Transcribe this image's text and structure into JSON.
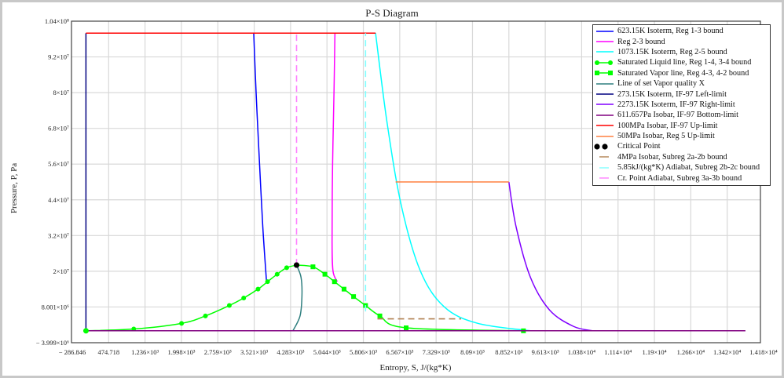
{
  "window": {
    "title": "P-S Diagram"
  },
  "chart_data": {
    "type": "line",
    "title": "P-S Diagram",
    "xlabel": "Entropy, S, J/(kg*K)",
    "ylabel": "Pressure, P, Pa",
    "xlim": [
      -286.846,
      14180
    ],
    "ylim": [
      -3999000,
      104000000
    ],
    "grid": true,
    "legend_position": "top-right",
    "x_ticks": [
      "− 286.846",
      "474.718",
      "1.236×10³",
      "1.998×10³",
      "2.759×10³",
      "3.521×10³",
      "4.283×10³",
      "5.044×10³",
      "5.806×10³",
      "6.567×10³",
      "7.329×10³",
      "8.09×10³",
      "8.852×10³",
      "9.613×10³",
      "1.038×10⁴",
      "1.114×10⁴",
      "1.19×10⁴",
      "1.266×10⁴",
      "1.342×10⁴",
      "1.418×10⁴"
    ],
    "y_ticks": [
      "1.04×10⁸",
      "9.2×10⁷",
      "8×10⁷",
      "6.8×10⁷",
      "5.6×10⁷",
      "4.4×10⁷",
      "3.2×10⁷",
      "2×10⁷",
      "8.001×10⁶",
      "− 3.999×10⁶"
    ],
    "series": [
      {
        "name": "623.15K Isoterm, Reg 1-3 bound",
        "color": "#0000ff",
        "style": "solid",
        "x": [
          3510,
          3560,
          3620,
          3700,
          3778
        ],
        "y": [
          100000000,
          80000000,
          60000000,
          35000000,
          16530000
        ]
      },
      {
        "name": "Reg 2-3 bound",
        "color": "#ff00ff",
        "style": "solid",
        "x": [
          5210,
          5190,
          5160,
          5150,
          5170,
          5260
        ],
        "y": [
          100000000,
          80000000,
          55000000,
          30000000,
          20000000,
          16530000
        ]
      },
      {
        "name": "1073.15K Isoterm, Reg 2-5 bound",
        "color": "#00ffff",
        "style": "solid",
        "x": [
          6060,
          6300,
          6600,
          7000,
          7500,
          8200,
          9300
        ],
        "y": [
          100000000,
          70000000,
          42000000,
          20000000,
          8000000,
          2500000,
          0
        ]
      },
      {
        "name": "Saturated Liquid line, Reg 1-4, 3-4 bound",
        "color": "#00ff00",
        "style": "solid-circle-markers",
        "x": [
          0,
          1000,
          2000,
          2500,
          3000,
          3300,
          3600,
          3800,
          4000,
          4200,
          4407
        ],
        "y": [
          611,
          600000,
          2500000,
          5000000,
          8500000,
          11000000,
          14000000,
          16500000,
          19000000,
          21200000,
          22064000
        ]
      },
      {
        "name": "Saturated Vapor line, Reg 4-3, 4-2 bound",
        "color": "#00ff00",
        "style": "solid-square-markers",
        "x": [
          4407,
          4750,
          5000,
          5200,
          5400,
          5600,
          5850,
          6150,
          6700,
          9155
        ],
        "y": [
          22064000,
          21500000,
          19000000,
          16500000,
          14000000,
          11500000,
          8500000,
          5000000,
          1000000,
          611
        ]
      },
      {
        "name": "Line of set Vapor quality X",
        "color": "#2f7f7f",
        "style": "solid",
        "x": [
          4407,
          4500,
          4520,
          4480,
          4330
        ],
        "y": [
          22064000,
          18000000,
          12000000,
          5000000,
          611
        ]
      },
      {
        "name": "273.15K Isoterm, IF-97 Left-limit",
        "color": "#000080",
        "style": "solid",
        "x": [
          0,
          0
        ],
        "y": [
          611,
          100000000
        ]
      },
      {
        "name": "2273.15K Isoterm, IF-97 Right-limit",
        "color": "#8000ff",
        "style": "solid",
        "x": [
          8850,
          9000,
          9300,
          9700,
          10200,
          10600
        ],
        "y": [
          50000000,
          35000000,
          18000000,
          7000000,
          1500000,
          0
        ]
      },
      {
        "name": "611.657Pa Isobar, IF-97 Bottom-limit",
        "color": "#800080",
        "style": "solid",
        "x": [
          0,
          13800
        ],
        "y": [
          611.657,
          611.657
        ]
      },
      {
        "name": "100MPa Isobar, IF-97 Up-limit",
        "color": "#ff0000",
        "style": "solid",
        "x": [
          0,
          6060
        ],
        "y": [
          100000000,
          100000000
        ]
      },
      {
        "name": "50MPa Isobar, Reg 5 Up-limit",
        "color": "#ff8040",
        "style": "solid",
        "x": [
          6480,
          8850
        ],
        "y": [
          50000000,
          50000000
        ]
      },
      {
        "name": "Critical Point",
        "color": "#000000",
        "style": "marker",
        "x": [
          4407
        ],
        "y": [
          22064000
        ]
      },
      {
        "name": "4MPa Isobar, Subreg 2a-2b bound",
        "color": "#b08050",
        "style": "dashed",
        "x": [
          6100,
          7850
        ],
        "y": [
          4000000,
          4000000
        ]
      },
      {
        "name": "5.85kJ/(kg*K) Adiabat, Subreg 2b-2c bound",
        "color": "#80ffff",
        "style": "dashed",
        "x": [
          5850,
          5850
        ],
        "y": [
          6500000,
          100000000
        ]
      },
      {
        "name": "Cr. Point Adiabat, Subreg 3a-3b bound",
        "color": "#ff80ff",
        "style": "dashed",
        "x": [
          4407,
          4407
        ],
        "y": [
          22064000,
          100000000
        ]
      }
    ]
  },
  "legend": [
    {
      "label": "623.15K Isoterm, Reg 1-3 bound",
      "color": "#0000ff",
      "sym": "line"
    },
    {
      "label": "Reg 2-3 bound",
      "color": "#ff00ff",
      "sym": "line"
    },
    {
      "label": "1073.15K Isoterm, Reg 2-5 bound",
      "color": "#00ffff",
      "sym": "line"
    },
    {
      "label": "Saturated Liquid line, Reg 1-4, 3-4 bound",
      "color": "#00ff00",
      "sym": "circle"
    },
    {
      "label": "Saturated Vapor line, Reg 4-3, 4-2 bound",
      "color": "#00ff00",
      "sym": "square"
    },
    {
      "label": "Line of set Vapor quality X",
      "color": "#2f7f7f",
      "sym": "line"
    },
    {
      "label": "273.15K Isoterm, IF-97 Left-limit",
      "color": "#000080",
      "sym": "line"
    },
    {
      "label": "2273.15K Isoterm, IF-97 Right-limit",
      "color": "#8000ff",
      "sym": "line"
    },
    {
      "label": "611.657Pa Isobar, IF-97 Bottom-limit",
      "color": "#800080",
      "sym": "line"
    },
    {
      "label": "100MPa Isobar, IF-97 Up-limit",
      "color": "#ff0000",
      "sym": "line"
    },
    {
      "label": "50MPa Isobar, Reg 5 Up-limit",
      "color": "#ff8040",
      "sym": "line"
    },
    {
      "label": "Critical Point",
      "color": "#000000",
      "sym": "dot"
    },
    {
      "label": "4MPa Isobar, Subreg 2a-2b bound",
      "color": "#b08050",
      "sym": "short"
    },
    {
      "label": "5.85kJ/(kg*K) Adiabat, Subreg 2b-2c bound",
      "color": "#80ffff",
      "sym": "short"
    },
    {
      "label": "Cr. Point Adiabat, Subreg 3a-3b bound",
      "color": "#ff80ff",
      "sym": "short"
    }
  ]
}
